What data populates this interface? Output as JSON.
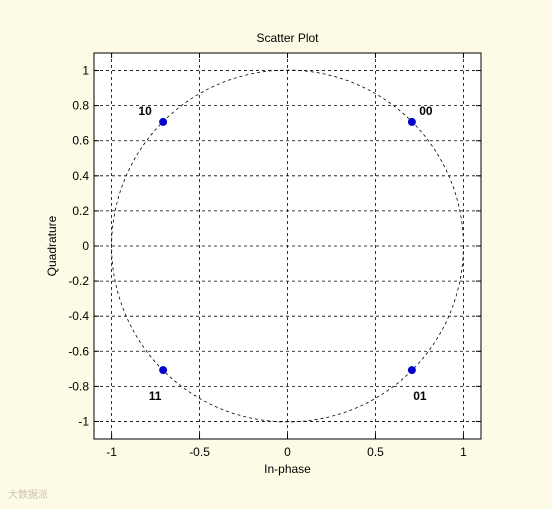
{
  "watermark": "大数据派",
  "chart_data": {
    "type": "scatter",
    "title": "Scatter Plot",
    "xlabel": "In-phase",
    "ylabel": "Quadrature",
    "xlim": [
      -1.1,
      1.1
    ],
    "ylim": [
      -1.1,
      1.1
    ],
    "xticks": [
      -1,
      -0.5,
      0,
      0.5,
      1
    ],
    "xtick_labels": [
      "-1",
      "-0.5",
      "0",
      "0.5",
      "1"
    ],
    "yticks": [
      1,
      0.8,
      0.6,
      0.4,
      0.2,
      0,
      -0.2,
      -0.4,
      -0.6,
      -0.8,
      -1
    ],
    "ytick_labels": [
      "1",
      "0.8",
      "0.6",
      "0.4",
      "0.2",
      "0",
      "-0.2",
      "-0.4",
      "-0.6",
      "-0.8",
      "-1"
    ],
    "grid": true,
    "unit_circle": true,
    "marker_color": "#0000cc",
    "points": [
      {
        "x": 0.7071,
        "y": 0.7071,
        "label": "00"
      },
      {
        "x": 0.7071,
        "y": -0.7071,
        "label": "01"
      },
      {
        "x": -0.7071,
        "y": 0.7071,
        "label": "10"
      },
      {
        "x": -0.7071,
        "y": -0.7071,
        "label": "11"
      }
    ]
  }
}
